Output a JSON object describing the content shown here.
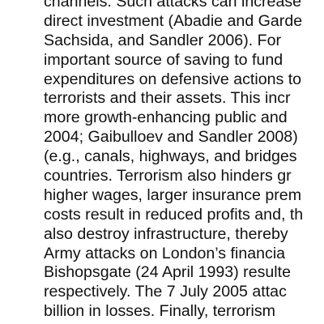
{
  "document": {
    "lines": [
      "channels. Such attacks can increase",
      "direct investment (Abadie and Garde",
      "Sachsida, and Sandler 2006). For",
      "important source of saving to fund",
      "expenditures on defensive actions to",
      "terrorists and their assets. This incr",
      "more growth-enhancing public and",
      "2004; Gaibulloev and Sandler 2008)",
      "(e.g., canals, highways, and bridges",
      "countries. Terrorism also hinders gr",
      "higher wages, larger insurance prem",
      "costs result in reduced profits and, th",
      "also destroy infrastructure, thereby",
      "Army attacks on London’s financia",
      "Bishopsgate (24 April 1993) resulte",
      "respectively. The 7 July 2005 attac",
      "billion in losses. Finally, terrorism"
    ]
  }
}
